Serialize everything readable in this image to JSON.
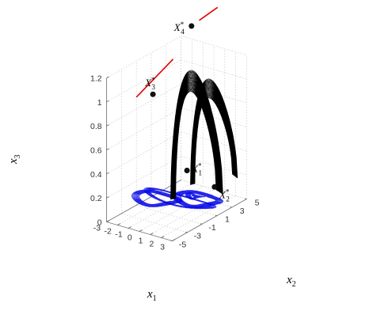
{
  "chart_data": {
    "type": "line",
    "dimensions": "3d",
    "xlabel": "x",
    "xlabel_sub": "1",
    "ylabel": "x",
    "ylabel_sub": "2",
    "zlabel": "x",
    "zlabel_sub": "3",
    "xlim": [
      -3,
      3
    ],
    "ylim": [
      -5,
      5
    ],
    "zlim": [
      0,
      1.2
    ],
    "x_ticks": [
      "-3",
      "-2",
      "-1",
      "0",
      "1",
      "2",
      "3"
    ],
    "y_ticks": [
      "-5",
      "-3",
      "-1",
      "1",
      "3",
      "5"
    ],
    "z_ticks": [
      "0",
      "0.2",
      "0.4",
      "0.6",
      "0.8",
      "1",
      "1.2"
    ],
    "grid": true,
    "series": [
      {
        "color": "#0000e6",
        "kind": "trajectory-projection",
        "z": 0.1
      },
      {
        "color": "#000000",
        "kind": "trajectory",
        "peaks": [
          {
            "x": 0.2,
            "y": 2.3,
            "z": 1.15
          },
          {
            "x": 0.8,
            "y": 3.8,
            "z": 1.04
          }
        ]
      },
      {
        "color": "#e60000",
        "kind": "segment",
        "points": [
          {
            "x": -3,
            "y": -1,
            "z": 0.9
          },
          {
            "x": -1,
            "y": 1,
            "z": 1.2
          }
        ]
      },
      {
        "color": "#e60000",
        "kind": "segment",
        "points": [
          {
            "x": -1,
            "y": 4.5,
            "z": 1.4
          },
          {
            "x": 0,
            "y": 5.5,
            "z": 1.5
          }
        ]
      }
    ],
    "points": [
      {
        "label": "X",
        "sup": "*",
        "sub": "1",
        "x": 0.2,
        "y": 1.1,
        "z": 0.3
      },
      {
        "label": "X",
        "sup": "*",
        "sub": "2",
        "x": 1.7,
        "y": 2.6,
        "z": 0.15
      },
      {
        "label": "X",
        "sup": "*",
        "sub": "3",
        "x": -2.3,
        "y": 0.2,
        "z": 0.9
      },
      {
        "label": "X",
        "sup": "*",
        "sub": "4",
        "x": -1.5,
        "y": 4.2,
        "z": 1.35
      }
    ]
  }
}
